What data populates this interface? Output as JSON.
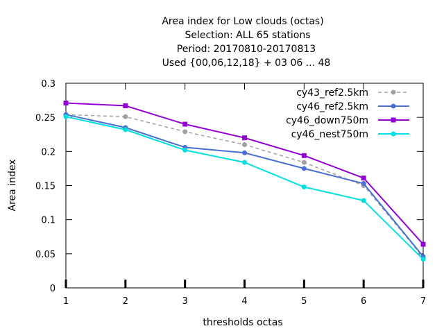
{
  "chart_data": {
    "type": "line",
    "title_lines": [
      "Area index  for Low clouds (octas)",
      "Selection: ALL      65 stations",
      "Period: 20170810-20170813",
      "Used {00,06,12,18} + 03 06 ... 48"
    ],
    "xlabel": "thresholds octas",
    "ylabel": "Area index",
    "x": [
      1,
      2,
      3,
      4,
      5,
      6,
      7
    ],
    "xlim": [
      1,
      7
    ],
    "ylim": [
      0,
      0.3
    ],
    "x_ticks": [
      "1",
      "2",
      "3",
      "4",
      "5",
      "6",
      "7"
    ],
    "y_ticks": [
      "0",
      "0.05",
      "0.1",
      "0.15",
      "0.2",
      "0.25",
      "0.3"
    ],
    "grid": false,
    "legend_position": "top-right",
    "series": [
      {
        "name": "cy43_ref2.5km",
        "color": "#a0a0a0",
        "dashed": true,
        "marker": "circle",
        "values": [
          0.254,
          0.251,
          0.229,
          0.21,
          0.184,
          0.15,
          0.045
        ]
      },
      {
        "name": "cy46_ref2.5km",
        "color": "#4a6fd4",
        "dashed": false,
        "marker": "circle",
        "values": [
          0.254,
          0.235,
          0.206,
          0.198,
          0.175,
          0.153,
          0.046
        ]
      },
      {
        "name": "cy46_down750m",
        "color": "#9400d3",
        "dashed": false,
        "marker": "square",
        "values": [
          0.271,
          0.267,
          0.24,
          0.22,
          0.194,
          0.161,
          0.064
        ]
      },
      {
        "name": "cy46_nest750m",
        "color": "#00e0e0",
        "dashed": false,
        "marker": "circle",
        "values": [
          0.251,
          0.232,
          0.202,
          0.184,
          0.148,
          0.128,
          0.042
        ]
      }
    ]
  }
}
